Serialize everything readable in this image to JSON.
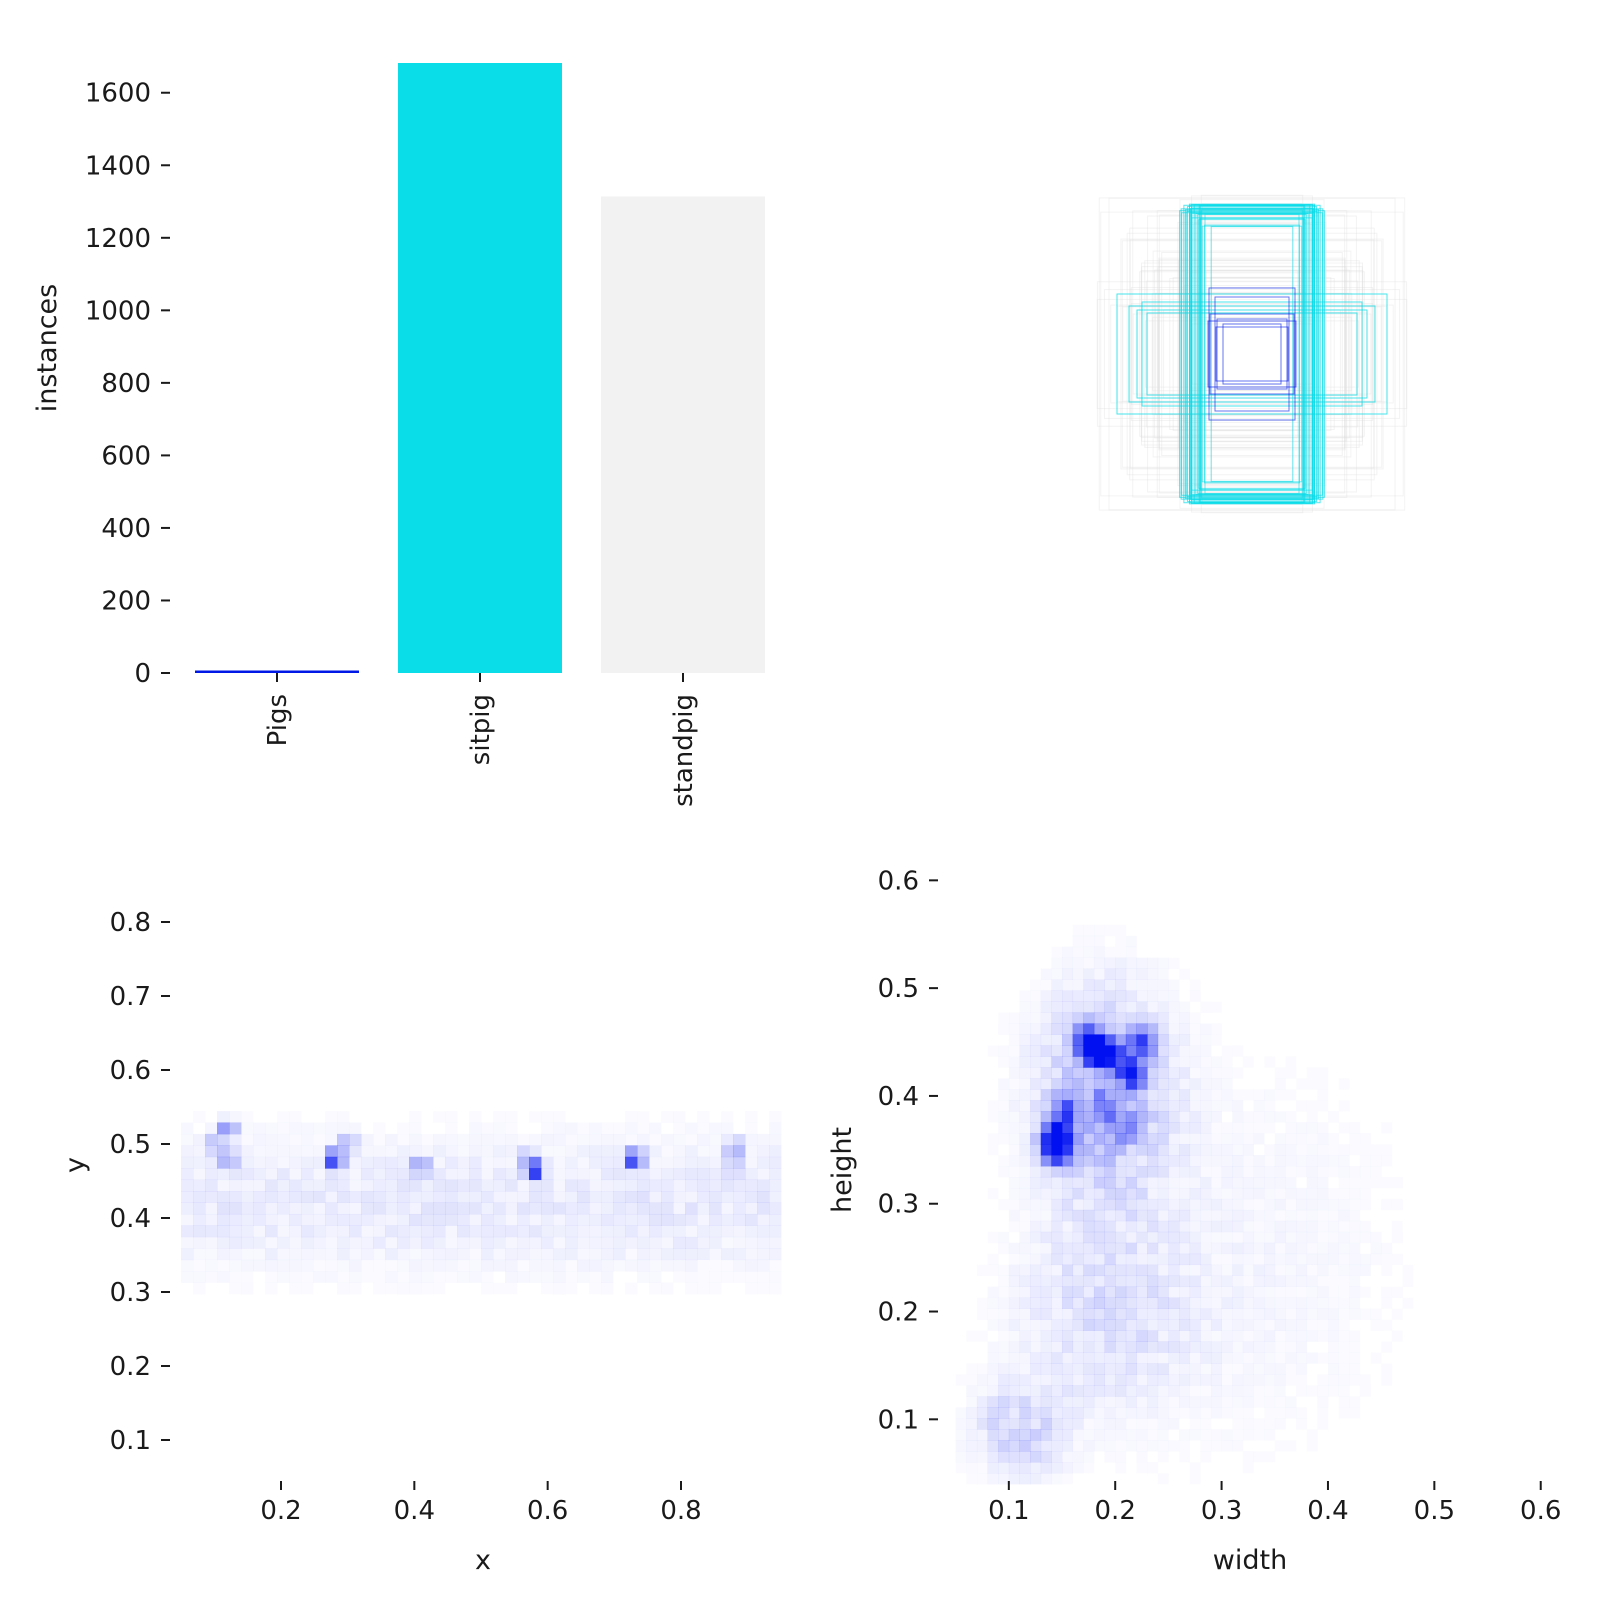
{
  "chart_data": [
    {
      "type": "bar",
      "title": "",
      "xlabel": "",
      "ylabel": "instances",
      "categories": [
        "Pigs",
        "sitpig",
        "standpig"
      ],
      "values": [
        5,
        1682,
        1314
      ],
      "colors": [
        "#0018e6",
        "#0adce8",
        "#f2f2f2"
      ],
      "ylim": [
        0,
        1682
      ],
      "yticks": [
        "0",
        "200",
        "400",
        "600",
        "800",
        "1000",
        "1200",
        "1400",
        "1600"
      ]
    },
    {
      "type": "other",
      "description_note": "",
      "kind": "bounding-box overlay",
      "colors": [
        "#0018e6",
        "#0adce8",
        "#dcdcdc"
      ]
    },
    {
      "type": "heatmap",
      "xlabel": "x",
      "ylabel": "y",
      "xlim": [
        0.05,
        0.95
      ],
      "ylim": [
        0.05,
        0.9
      ],
      "xticks": [
        "0.2",
        "0.4",
        "0.6",
        "0.8"
      ],
      "yticks": [
        "0.1",
        "0.2",
        "0.3",
        "0.4",
        "0.5",
        "0.6",
        "0.7",
        "0.8"
      ],
      "color": "#0010f0",
      "hotspots": [
        {
          "x": 0.12,
          "y": 0.52,
          "v": 0.55
        },
        {
          "x": 0.12,
          "y": 0.48,
          "v": 0.45
        },
        {
          "x": 0.1,
          "y": 0.5,
          "v": 0.3
        },
        {
          "x": 0.28,
          "y": 0.48,
          "v": 1.0
        },
        {
          "x": 0.3,
          "y": 0.5,
          "v": 0.35
        },
        {
          "x": 0.41,
          "y": 0.47,
          "v": 0.5
        },
        {
          "x": 0.58,
          "y": 0.465,
          "v": 0.9
        },
        {
          "x": 0.57,
          "y": 0.48,
          "v": 0.35
        },
        {
          "x": 0.73,
          "y": 0.48,
          "v": 1.0
        },
        {
          "x": 0.88,
          "y": 0.495,
          "v": 0.4
        },
        {
          "x": 0.88,
          "y": 0.47,
          "v": 0.2
        }
      ]
    },
    {
      "type": "heatmap",
      "xlabel": "width",
      "ylabel": "height",
      "xlim": [
        0.04,
        0.62
      ],
      "ylim": [
        0.04,
        0.63
      ],
      "xticks": [
        "0.1",
        "0.2",
        "0.3",
        "0.4",
        "0.5",
        "0.6"
      ],
      "yticks": [
        "0.1",
        "0.2",
        "0.3",
        "0.4",
        "0.5",
        "0.6"
      ],
      "color": "#0010f0",
      "hotspots": [
        {
          "x": 0.175,
          "y": 0.45,
          "v": 1.0
        },
        {
          "x": 0.185,
          "y": 0.44,
          "v": 0.85
        },
        {
          "x": 0.225,
          "y": 0.45,
          "v": 0.7
        },
        {
          "x": 0.215,
          "y": 0.42,
          "v": 0.75
        },
        {
          "x": 0.2,
          "y": 0.44,
          "v": 0.5
        },
        {
          "x": 0.145,
          "y": 0.35,
          "v": 0.95
        },
        {
          "x": 0.15,
          "y": 0.37,
          "v": 0.6
        },
        {
          "x": 0.155,
          "y": 0.39,
          "v": 0.45
        },
        {
          "x": 0.14,
          "y": 0.36,
          "v": 0.5
        },
        {
          "x": 0.19,
          "y": 0.39,
          "v": 0.35
        },
        {
          "x": 0.21,
          "y": 0.37,
          "v": 0.3
        }
      ]
    }
  ]
}
